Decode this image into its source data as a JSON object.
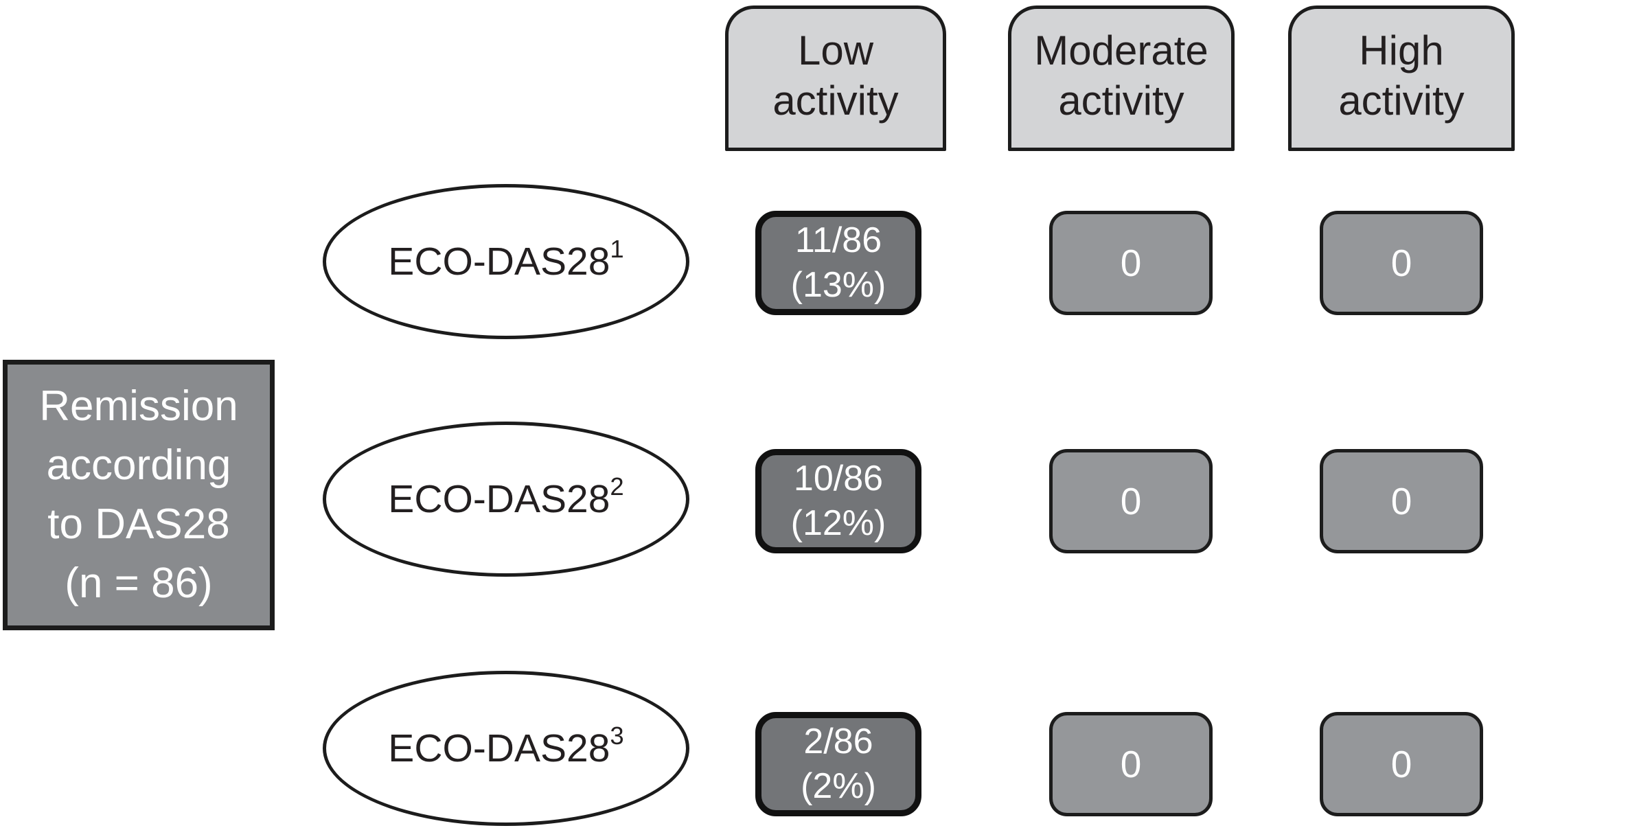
{
  "colors": {
    "background": "#ffffff",
    "column_header_fill": "#d3d4d6",
    "row_header_fill": "#898b8e",
    "fraction_cell_fill": "#737578",
    "zero_cell_fill": "#95979a",
    "outline": "#1c1c1c",
    "text_dark": "#231f20",
    "text_light": "#ffffff"
  },
  "columns": [
    {
      "label": "Low activity"
    },
    {
      "label": "Moderate activity"
    },
    {
      "label": "High activity"
    }
  ],
  "row_header": {
    "lines": [
      "Remission",
      "according",
      "to DAS28",
      "(n = 86)"
    ]
  },
  "rows": [
    {
      "source": {
        "base": "ECO-DAS28",
        "sup": "1"
      },
      "cells": [
        {
          "line1": "11/86",
          "line2": "(13%)"
        },
        {
          "value": "0"
        },
        {
          "value": "0"
        }
      ]
    },
    {
      "source": {
        "base": "ECO-DAS28",
        "sup": "2"
      },
      "cells": [
        {
          "line1": "10/86",
          "line2": "(12%)"
        },
        {
          "value": "0"
        },
        {
          "value": "0"
        }
      ]
    },
    {
      "source": {
        "base": "ECO-DAS28",
        "sup": "3"
      },
      "cells": [
        {
          "line1": "2/86",
          "line2": "(2%)"
        },
        {
          "value": "0"
        },
        {
          "value": "0"
        }
      ]
    }
  ]
}
